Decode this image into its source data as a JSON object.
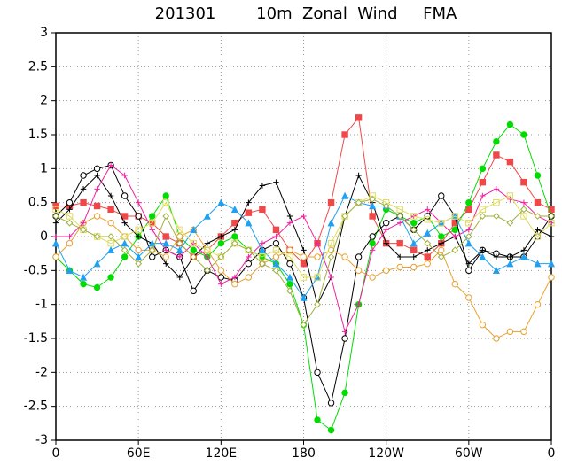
{
  "chart_data": {
    "type": "line",
    "title": "201301        10m  Zonal  Wind     FMA",
    "x": [
      0,
      10,
      20,
      30,
      40,
      50,
      60,
      70,
      80,
      90,
      100,
      110,
      120,
      130,
      140,
      150,
      160,
      170,
      180,
      190,
      200,
      210,
      220,
      230,
      240,
      250,
      260,
      270,
      280,
      290,
      300,
      310,
      320,
      330,
      340,
      350,
      360
    ],
    "xlim": [
      0,
      360
    ],
    "xticks": [
      0,
      {
        "value": 60,
        "label": "60E"
      },
      {
        "value": 120,
        "label": "120E"
      },
      180,
      {
        "value": 240,
        "label": "120W"
      },
      {
        "value": 300,
        "label": "60W"
      },
      {
        "value": 360,
        "label": "0"
      }
    ],
    "ylim": [
      -3,
      3
    ],
    "yticks": [
      -3,
      -2.5,
      -2,
      -1.5,
      -1,
      -0.5,
      0,
      0.5,
      1,
      1.5,
      2,
      2.5,
      3
    ],
    "grid": true,
    "series": [
      {
        "color": "#f04848",
        "marker": "square",
        "values": [
          0.45,
          0.45,
          0.5,
          0.45,
          0.4,
          0.3,
          0.3,
          0.2,
          0.0,
          -0.1,
          -0.3,
          -0.2,
          0.0,
          0.2,
          0.35,
          0.4,
          0.1,
          -0.2,
          -0.4,
          -0.1,
          0.5,
          1.5,
          1.75,
          0.3,
          -0.1,
          -0.1,
          -0.2,
          -0.3,
          -0.1,
          0.2,
          0.4,
          0.8,
          1.2,
          1.1,
          0.8,
          0.5,
          0.4
        ]
      },
      {
        "color": "#00dc00",
        "marker": "circle",
        "values": [
          -0.3,
          -0.5,
          -0.7,
          -0.75,
          -0.6,
          -0.3,
          0.0,
          0.3,
          0.6,
          0.0,
          -0.2,
          -0.3,
          -0.1,
          0.0,
          -0.2,
          -0.3,
          -0.4,
          -0.7,
          -1.3,
          -2.7,
          -2.85,
          -2.3,
          -1.0,
          -0.1,
          0.4,
          0.3,
          0.2,
          0.3,
          0.0,
          0.1,
          0.5,
          1.0,
          1.4,
          1.65,
          1.5,
          0.9,
          0.3
        ]
      },
      {
        "color": "#000000",
        "marker": "open-circle",
        "values": [
          0.3,
          0.5,
          0.9,
          1.0,
          1.05,
          0.6,
          0.3,
          -0.3,
          -0.2,
          -0.3,
          -0.8,
          -0.5,
          -0.6,
          -0.65,
          -0.4,
          -0.2,
          -0.1,
          -0.4,
          -0.9,
          -2.0,
          -2.45,
          -1.5,
          -0.3,
          0.0,
          0.2,
          0.3,
          0.1,
          0.3,
          0.6,
          0.3,
          -0.5,
          -0.2,
          -0.25,
          -0.3,
          -0.3,
          0.0,
          0.3
        ]
      },
      {
        "color": "#000000",
        "marker": "plus",
        "values": [
          0.2,
          0.4,
          0.7,
          0.9,
          0.6,
          0.2,
          0.0,
          -0.1,
          -0.4,
          -0.6,
          -0.3,
          -0.1,
          0.0,
          0.1,
          0.5,
          0.75,
          0.8,
          0.3,
          -0.2,
          -1.0,
          -0.6,
          0.3,
          0.9,
          0.5,
          -0.1,
          -0.3,
          -0.3,
          -0.2,
          -0.1,
          0.0,
          -0.4,
          -0.2,
          -0.3,
          -0.3,
          -0.2,
          0.1,
          0.0
        ]
      },
      {
        "color": "#e8a030",
        "marker": "open-circle",
        "values": [
          -0.3,
          -0.1,
          0.2,
          0.3,
          0.2,
          0.0,
          -0.2,
          -0.2,
          -0.3,
          0.0,
          0.1,
          -0.2,
          -0.5,
          -0.7,
          -0.6,
          -0.4,
          -0.3,
          -0.2,
          -0.3,
          -0.3,
          -0.2,
          -0.3,
          -0.5,
          -0.6,
          -0.5,
          -0.45,
          -0.45,
          -0.4,
          -0.2,
          -0.7,
          -0.9,
          -1.3,
          -1.5,
          -1.4,
          -1.4,
          -1.0,
          -0.6
        ]
      },
      {
        "color": "#f020a0",
        "marker": "plus",
        "values": [
          0.0,
          0.0,
          0.2,
          0.7,
          1.05,
          0.9,
          0.5,
          0.1,
          -0.2,
          -0.3,
          -0.1,
          -0.3,
          -0.7,
          -0.6,
          -0.3,
          -0.1,
          0.0,
          0.2,
          0.3,
          -0.1,
          -0.6,
          -1.4,
          -1.0,
          -0.2,
          0.1,
          0.2,
          0.3,
          0.4,
          0.2,
          0.0,
          0.1,
          0.6,
          0.7,
          0.55,
          0.5,
          0.3,
          0.2
        ]
      },
      {
        "color": "#20a0f0",
        "marker": "triangle",
        "values": [
          -0.1,
          -0.5,
          -0.6,
          -0.4,
          -0.2,
          -0.1,
          -0.3,
          -0.1,
          -0.1,
          -0.2,
          0.1,
          0.3,
          0.5,
          0.4,
          0.2,
          -0.2,
          -0.4,
          -0.6,
          -0.9,
          -0.6,
          0.2,
          0.6,
          0.5,
          0.45,
          0.45,
          0.3,
          -0.1,
          0.05,
          0.2,
          0.3,
          -0.1,
          -0.3,
          -0.5,
          -0.4,
          -0.3,
          -0.4,
          -0.4
        ]
      },
      {
        "color": "#e0dc60",
        "marker": "open-square",
        "values": [
          0.4,
          0.3,
          0.1,
          0.0,
          -0.1,
          0.0,
          0.1,
          0.2,
          0.5,
          0.1,
          -0.1,
          -0.2,
          -0.3,
          -0.1,
          -0.2,
          -0.3,
          -0.2,
          -0.3,
          -0.6,
          -0.6,
          -0.1,
          0.3,
          0.5,
          0.6,
          0.5,
          0.4,
          0.3,
          0.25,
          0.2,
          0.3,
          0.2,
          0.4,
          0.5,
          0.6,
          0.3,
          0.0,
          0.2
        ]
      },
      {
        "color": "#a0b040",
        "marker": "open-diamond",
        "values": [
          0.3,
          0.2,
          0.1,
          0.0,
          0.0,
          -0.2,
          -0.4,
          -0.2,
          0.3,
          -0.1,
          -0.3,
          -0.5,
          -0.3,
          -0.1,
          -0.2,
          -0.4,
          -0.5,
          -0.8,
          -1.3,
          -1.0,
          -0.3,
          0.3,
          0.5,
          0.55,
          0.45,
          0.3,
          0.1,
          -0.1,
          -0.3,
          -0.2,
          0.0,
          0.3,
          0.3,
          0.2,
          0.4,
          0.3,
          0.3
        ]
      }
    ]
  }
}
